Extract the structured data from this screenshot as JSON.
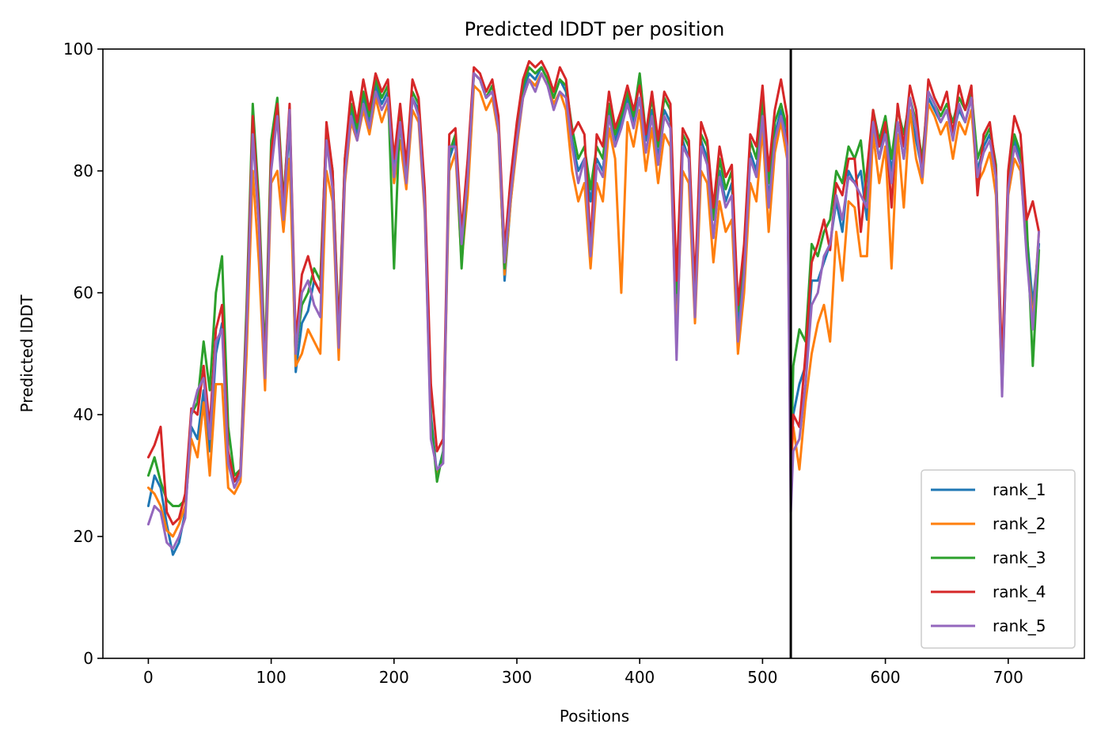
{
  "chart_data": {
    "type": "line",
    "title": "Predicted lDDT per position",
    "xlabel": "Positions",
    "ylabel": "Predicted lDDT",
    "xlim": [
      -37,
      762
    ],
    "ylim": [
      0,
      100
    ],
    "x_ticks": [
      0,
      100,
      200,
      300,
      400,
      500,
      600,
      700
    ],
    "y_ticks": [
      0,
      20,
      40,
      60,
      80,
      100
    ],
    "vline_x": 523,
    "vline_color": "#000000",
    "grid": false,
    "legend_position": "lower-right",
    "x": [
      0,
      5,
      10,
      15,
      20,
      25,
      30,
      35,
      40,
      45,
      50,
      55,
      60,
      65,
      70,
      75,
      80,
      85,
      90,
      95,
      100,
      105,
      110,
      115,
      120,
      125,
      130,
      135,
      140,
      145,
      150,
      155,
      160,
      165,
      170,
      175,
      180,
      185,
      190,
      195,
      200,
      205,
      210,
      215,
      220,
      225,
      230,
      235,
      240,
      245,
      250,
      255,
      260,
      265,
      270,
      275,
      280,
      285,
      290,
      295,
      300,
      305,
      310,
      315,
      320,
      325,
      330,
      335,
      340,
      345,
      350,
      355,
      360,
      365,
      370,
      375,
      380,
      385,
      390,
      395,
      400,
      405,
      410,
      415,
      420,
      425,
      430,
      435,
      440,
      445,
      450,
      455,
      460,
      465,
      470,
      475,
      480,
      485,
      490,
      495,
      500,
      505,
      510,
      515,
      520,
      523,
      525,
      530,
      535,
      540,
      545,
      550,
      555,
      560,
      565,
      570,
      575,
      580,
      585,
      590,
      595,
      600,
      605,
      610,
      615,
      620,
      625,
      630,
      635,
      640,
      645,
      650,
      655,
      660,
      665,
      670,
      675,
      680,
      685,
      690,
      695,
      700,
      705,
      710,
      715,
      720,
      725
    ],
    "series": [
      {
        "name": "rank_1",
        "color": "#1f77b4",
        "values": [
          25,
          30,
          28,
          22,
          17,
          19,
          24,
          38,
          36,
          44,
          34,
          50,
          55,
          32,
          29,
          30,
          55,
          87,
          72,
          47,
          82,
          90,
          72,
          88,
          47,
          55,
          57,
          62,
          60,
          85,
          78,
          52,
          80,
          90,
          86,
          92,
          88,
          94,
          91,
          93,
          80,
          88,
          79,
          92,
          90,
          75,
          40,
          30,
          34,
          82,
          85,
          68,
          78,
          96,
          95,
          92,
          93,
          88,
          62,
          75,
          85,
          93,
          96,
          95,
          97,
          95,
          92,
          95,
          93,
          85,
          80,
          82,
          75,
          82,
          80,
          90,
          85,
          88,
          92,
          88,
          95,
          85,
          90,
          82,
          90,
          88,
          58,
          85,
          82,
          57,
          85,
          82,
          72,
          80,
          75,
          78,
          55,
          65,
          83,
          80,
          90,
          75,
          86,
          90,
          85,
          30,
          40,
          45,
          48,
          62,
          62,
          65,
          68,
          75,
          70,
          80,
          78,
          80,
          72,
          88,
          82,
          87,
          80,
          88,
          82,
          90,
          85,
          80,
          92,
          90,
          88,
          90,
          86,
          90,
          88,
          92,
          80,
          84,
          86,
          80,
          45,
          78,
          85,
          82,
          70,
          58,
          68
        ]
      },
      {
        "name": "rank_2",
        "color": "#ff7f0e",
        "values": [
          28,
          27,
          25,
          21,
          20,
          22,
          25,
          36,
          33,
          42,
          30,
          45,
          45,
          28,
          27,
          29,
          50,
          80,
          65,
          44,
          78,
          80,
          70,
          82,
          48,
          50,
          54,
          52,
          50,
          80,
          75,
          49,
          78,
          88,
          85,
          90,
          86,
          92,
          88,
          91,
          78,
          85,
          77,
          90,
          88,
          73,
          38,
          30,
          33,
          80,
          83,
          65,
          76,
          94,
          93,
          90,
          92,
          86,
          63,
          75,
          84,
          92,
          95,
          94,
          96,
          94,
          91,
          93,
          90,
          80,
          75,
          78,
          64,
          78,
          75,
          87,
          82,
          60,
          88,
          84,
          90,
          80,
          87,
          78,
          86,
          84,
          52,
          80,
          78,
          55,
          80,
          78,
          65,
          75,
          70,
          72,
          50,
          60,
          78,
          75,
          87,
          70,
          83,
          88,
          82,
          30,
          38,
          31,
          42,
          50,
          55,
          58,
          52,
          70,
          62,
          75,
          74,
          66,
          66,
          86,
          78,
          84,
          64,
          86,
          74,
          90,
          82,
          78,
          91,
          89,
          86,
          88,
          82,
          88,
          86,
          90,
          78,
          80,
          83,
          76,
          44,
          76,
          82,
          80,
          68,
          55,
          70
        ]
      },
      {
        "name": "rank_3",
        "color": "#2ca02c",
        "values": [
          30,
          33,
          29,
          26,
          25,
          25,
          26,
          40,
          42,
          52,
          44,
          60,
          66,
          38,
          30,
          31,
          58,
          91,
          75,
          49,
          85,
          92,
          75,
          90,
          50,
          58,
          60,
          64,
          62,
          87,
          80,
          54,
          82,
          91,
          87,
          93,
          89,
          95,
          92,
          94,
          64,
          90,
          80,
          93,
          91,
          76,
          39,
          29,
          34,
          83,
          86,
          64,
          80,
          96,
          95,
          92,
          94,
          88,
          64,
          77,
          86,
          94,
          97,
          96,
          97,
          95,
          92,
          95,
          94,
          87,
          82,
          84,
          77,
          84,
          82,
          91,
          86,
          89,
          93,
          89,
          96,
          86,
          92,
          84,
          92,
          90,
          60,
          86,
          84,
          58,
          86,
          84,
          72,
          82,
          77,
          80,
          57,
          67,
          85,
          82,
          92,
          78,
          88,
          91,
          87,
          30,
          48,
          54,
          52,
          68,
          66,
          70,
          72,
          80,
          78,
          84,
          82,
          85,
          75,
          90,
          85,
          89,
          82,
          90,
          86,
          92,
          88,
          82,
          93,
          91,
          89,
          91,
          88,
          92,
          90,
          93,
          82,
          85,
          87,
          81,
          46,
          79,
          86,
          83,
          72,
          48,
          67
        ]
      },
      {
        "name": "rank_4",
        "color": "#d62728",
        "values": [
          33,
          35,
          38,
          24,
          22,
          23,
          27,
          41,
          40,
          48,
          38,
          54,
          58,
          34,
          29,
          31,
          56,
          89,
          73,
          47,
          83,
          91,
          74,
          91,
          52,
          63,
          66,
          62,
          60,
          88,
          80,
          53,
          82,
          93,
          88,
          95,
          90,
          96,
          93,
          95,
          82,
          91,
          81,
          95,
          92,
          77,
          45,
          34,
          36,
          86,
          87,
          70,
          82,
          97,
          96,
          93,
          95,
          89,
          67,
          79,
          88,
          95,
          98,
          97,
          98,
          96,
          93,
          97,
          95,
          86,
          88,
          86,
          68,
          86,
          84,
          93,
          87,
          90,
          94,
          90,
          94,
          86,
          93,
          85,
          93,
          91,
          62,
          87,
          85,
          61,
          88,
          85,
          74,
          84,
          79,
          81,
          58,
          68,
          86,
          84,
          94,
          80,
          90,
          95,
          89,
          32,
          40,
          38,
          50,
          65,
          68,
          72,
          67,
          78,
          76,
          82,
          82,
          70,
          80,
          90,
          84,
          88,
          74,
          91,
          84,
          94,
          90,
          80,
          95,
          92,
          90,
          93,
          86,
          94,
          90,
          94,
          76,
          86,
          88,
          80,
          48,
          80,
          89,
          86,
          72,
          75,
          70
        ]
      },
      {
        "name": "rank_5",
        "color": "#9467bd",
        "values": [
          22,
          25,
          24,
          19,
          18,
          20,
          23,
          40,
          44,
          46,
          36,
          52,
          54,
          32,
          28,
          30,
          54,
          86,
          71,
          46,
          80,
          89,
          72,
          90,
          50,
          60,
          62,
          58,
          56,
          85,
          77,
          51,
          79,
          89,
          85,
          91,
          87,
          93,
          90,
          92,
          79,
          88,
          78,
          92,
          89,
          74,
          36,
          31,
          32,
          84,
          84,
          68,
          79,
          96,
          95,
          92,
          93,
          87,
          65,
          76,
          85,
          92,
          95,
          93,
          96,
          94,
          90,
          93,
          92,
          84,
          78,
          82,
          66,
          81,
          79,
          89,
          84,
          87,
          91,
          87,
          92,
          83,
          89,
          81,
          89,
          87,
          49,
          84,
          82,
          56,
          84,
          81,
          69,
          79,
          74,
          76,
          52,
          63,
          82,
          79,
          89,
          74,
          85,
          89,
          84,
          24,
          34,
          36,
          45,
          58,
          60,
          66,
          68,
          76,
          72,
          79,
          78,
          76,
          74,
          88,
          82,
          86,
          78,
          88,
          82,
          92,
          87,
          79,
          93,
          91,
          88,
          90,
          85,
          91,
          88,
          92,
          79,
          83,
          85,
          79,
          43,
          77,
          84,
          81,
          66,
          54,
          70
        ]
      }
    ]
  }
}
